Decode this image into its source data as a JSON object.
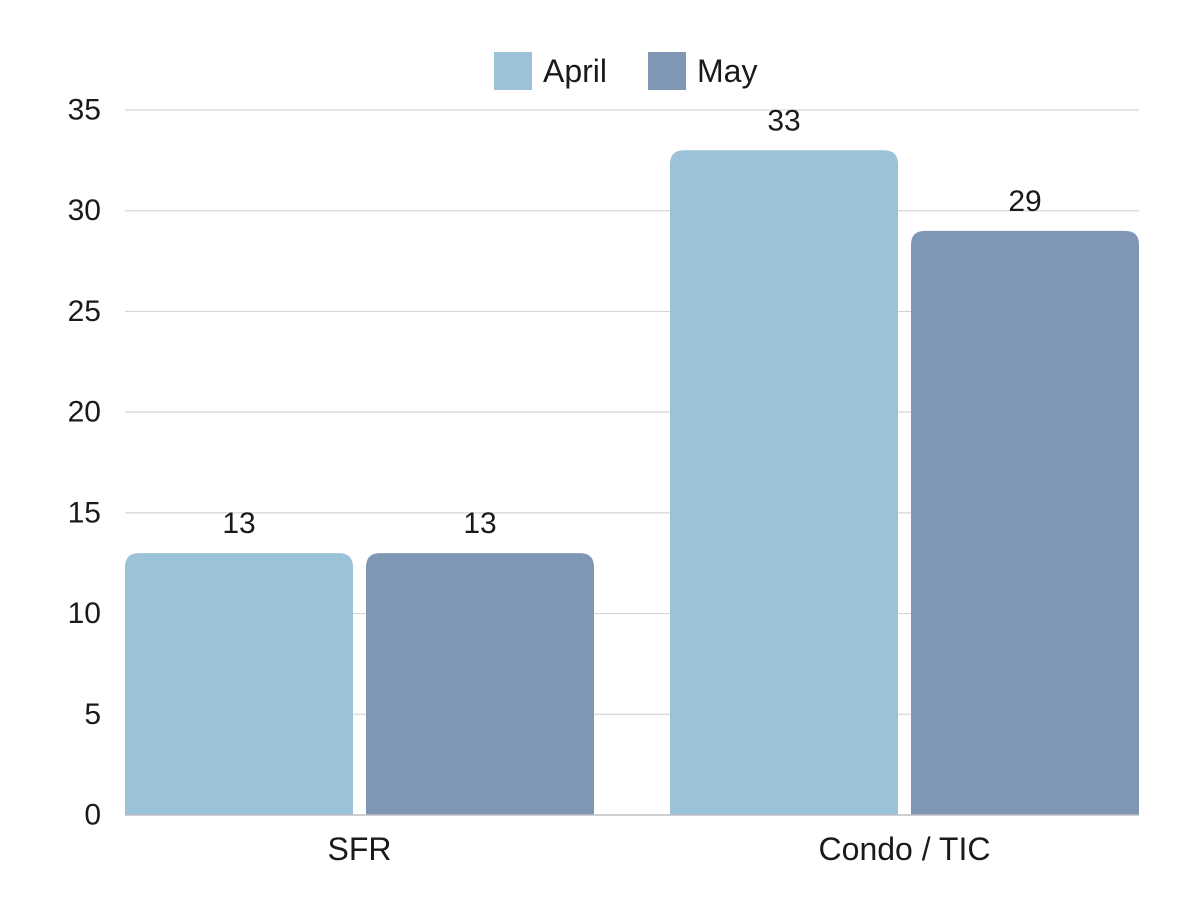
{
  "chart_data": {
    "type": "bar",
    "title": "",
    "xlabel": "",
    "ylabel": "",
    "categories": [
      "SFR",
      "Condo / TIC"
    ],
    "series": [
      {
        "name": "April",
        "values": [
          13,
          33
        ],
        "color": "#9bc2d8"
      },
      {
        "name": "May",
        "values": [
          13,
          29
        ],
        "color": "#7f97b4"
      }
    ],
    "ylim": [
      0,
      35
    ],
    "yticks": [
      0,
      5,
      10,
      15,
      20,
      25,
      30,
      35
    ],
    "grid": true,
    "legend_position": "top-center",
    "data_labels": true
  }
}
